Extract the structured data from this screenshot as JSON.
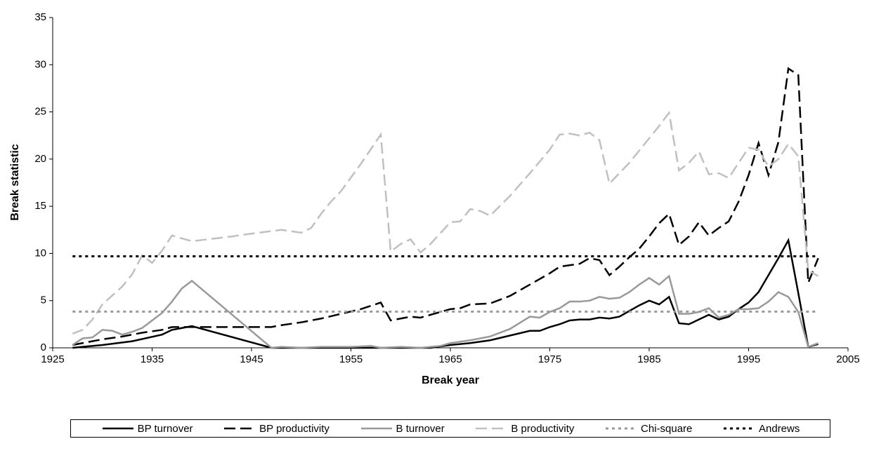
{
  "chart_data": {
    "type": "line",
    "x_label": "Break year",
    "y_label": "Break statistic",
    "xlim": [
      1925,
      2005
    ],
    "xticks": [
      1925,
      1935,
      1945,
      1955,
      1965,
      1975,
      1985,
      1995,
      2005
    ],
    "ylim": [
      0,
      35
    ],
    "yticks": [
      0,
      5,
      10,
      15,
      20,
      25,
      30,
      35
    ],
    "legend": "bottom",
    "series": [
      {
        "name": "BP turnover",
        "color": "#000000",
        "dash": "solid",
        "x": [
          1927,
          1928,
          1930,
          1933,
          1936,
          1937,
          1939,
          1947,
          1948,
          1950,
          1955,
          1960,
          1963,
          1965,
          1967,
          1969,
          1971,
          1973,
          1974,
          1975,
          1976,
          1977,
          1978,
          1979,
          1980,
          1981,
          1982,
          1983,
          1984,
          1985,
          1986,
          1987,
          1988,
          1989,
          1990,
          1991,
          1992,
          1993,
          1994,
          1995,
          1996,
          1997,
          1998,
          1999,
          2000,
          2001,
          2002
        ],
        "values": [
          0,
          0.1,
          0.3,
          0.7,
          1.4,
          1.9,
          2.3,
          0,
          0,
          0,
          0,
          0,
          0,
          0.3,
          0.5,
          0.8,
          1.3,
          1.8,
          1.8,
          2.2,
          2.5,
          2.9,
          3.0,
          3.0,
          3.2,
          3.1,
          3.3,
          3.9,
          4.5,
          5.0,
          4.6,
          5.4,
          2.6,
          2.5,
          3.0,
          3.5,
          3.0,
          3.3,
          4.1,
          4.8,
          5.9,
          7.7,
          9.5,
          11.4,
          5.8,
          0.1,
          0.4
        ]
      },
      {
        "name": "BP productivity",
        "color": "#000000",
        "dash": "dash",
        "x": [
          1927,
          1928,
          1930,
          1932,
          1934,
          1936,
          1937,
          1939,
          1947,
          1948,
          1950,
          1952,
          1954,
          1956,
          1958,
          1959,
          1961,
          1962,
          1964,
          1965,
          1966,
          1967,
          1969,
          1971,
          1973,
          1975,
          1976,
          1978,
          1979,
          1980,
          1981,
          1982,
          1983,
          1984,
          1985,
          1986,
          1987,
          1988,
          1989,
          1990,
          1991,
          1992,
          1993,
          1994,
          1995,
          1996,
          1997,
          1998,
          1999,
          2000,
          2001,
          2002
        ],
        "values": [
          0.3,
          0.5,
          0.9,
          1.2,
          1.6,
          1.9,
          2.2,
          2.2,
          2.2,
          2.4,
          2.7,
          3.1,
          3.6,
          4.1,
          4.8,
          2.9,
          3.3,
          3.2,
          3.8,
          4.1,
          4.2,
          4.6,
          4.7,
          5.5,
          6.7,
          7.9,
          8.6,
          8.9,
          9.5,
          9.3,
          7.7,
          8.6,
          9.6,
          10.5,
          11.8,
          13.2,
          14.2,
          10.9,
          11.8,
          13.3,
          11.9,
          12.7,
          13.4,
          15.5,
          18.3,
          21.7,
          18.3,
          21.8,
          29.6,
          28.9,
          6.9,
          9.5
        ]
      },
      {
        "name": "B turnover",
        "color": "#999999",
        "dash": "solid",
        "x": [
          1927,
          1928,
          1929,
          1930,
          1931,
          1932,
          1933,
          1934,
          1936,
          1937,
          1938,
          1939,
          1947,
          1948,
          1950,
          1952,
          1955,
          1957,
          1958,
          1960,
          1962,
          1964,
          1965,
          1967,
          1969,
          1971,
          1973,
          1974,
          1975,
          1976,
          1977,
          1978,
          1979,
          1980,
          1981,
          1982,
          1983,
          1984,
          1985,
          1986,
          1987,
          1988,
          1989,
          1990,
          1991,
          1992,
          1993,
          1994,
          1995,
          1996,
          1997,
          1998,
          1999,
          2000,
          2001,
          2002
        ],
        "values": [
          0.3,
          1.0,
          1.1,
          1.9,
          1.8,
          1.4,
          1.7,
          2.1,
          3.7,
          4.9,
          6.3,
          7.1,
          0,
          0.1,
          0,
          0.1,
          0.1,
          0.2,
          0,
          0.1,
          0,
          0.2,
          0.5,
          0.8,
          1.2,
          2.0,
          3.3,
          3.2,
          3.8,
          4.2,
          4.9,
          4.9,
          5.0,
          5.4,
          5.2,
          5.3,
          5.9,
          6.7,
          7.4,
          6.7,
          7.6,
          3.6,
          3.6,
          3.8,
          4.2,
          3.2,
          3.5,
          4.1,
          4.1,
          4.2,
          4.9,
          5.9,
          5.4,
          3.8,
          0.1,
          0.5
        ]
      },
      {
        "name": "B productivity",
        "color": "#c0c0c0",
        "dash": "dash",
        "x": [
          1927,
          1928,
          1929,
          1930,
          1932,
          1933,
          1934,
          1935,
          1936,
          1937,
          1939,
          1943,
          1945,
          1948,
          1950,
          1951,
          1952,
          1953,
          1954,
          1956,
          1958,
          1959,
          1960,
          1961,
          1962,
          1963,
          1965,
          1966,
          1967,
          1968,
          1969,
          1971,
          1973,
          1975,
          1976,
          1977,
          1978,
          1979,
          1980,
          1981,
          1983,
          1985,
          1986,
          1987,
          1988,
          1989,
          1990,
          1991,
          1992,
          1993,
          1995,
          1996,
          1997,
          1998,
          1999,
          2000,
          2001,
          2002
        ],
        "values": [
          1.5,
          1.9,
          3.0,
          4.6,
          6.5,
          7.8,
          9.8,
          9.0,
          10.3,
          11.9,
          11.3,
          11.8,
          12.1,
          12.5,
          12.2,
          12.7,
          14.2,
          15.5,
          16.6,
          19.5,
          22.6,
          10.2,
          11.0,
          11.5,
          10.1,
          11.0,
          13.3,
          13.4,
          14.7,
          14.5,
          14.0,
          16.1,
          18.5,
          21.0,
          22.6,
          22.7,
          22.5,
          22.8,
          22.0,
          17.4,
          19.6,
          22.2,
          23.5,
          24.9,
          18.8,
          19.6,
          20.8,
          18.4,
          18.5,
          18.0,
          21.2,
          21.0,
          19.2,
          20.0,
          21.6,
          20.3,
          8.2,
          7.6
        ]
      },
      {
        "name": "Chi-square",
        "color": "#999999",
        "dash": "dot",
        "x": [
          1927,
          2002
        ],
        "values": [
          3.84,
          3.84
        ]
      },
      {
        "name": "Andrews",
        "color": "#000000",
        "dash": "dot",
        "x": [
          1927,
          2002
        ],
        "values": [
          9.7,
          9.7
        ]
      }
    ]
  }
}
